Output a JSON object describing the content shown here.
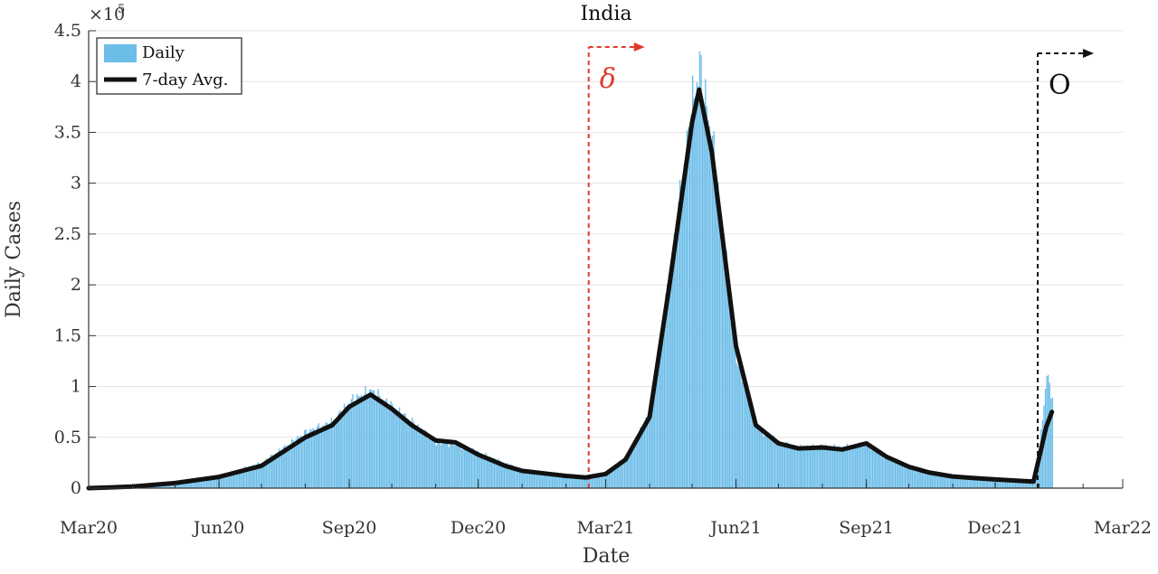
{
  "chart_data": {
    "type": "bar+line",
    "title": "India",
    "xlabel": "Date",
    "ylabel": "Daily Cases",
    "y_exponent_label": "×10",
    "y_exponent_power": "5",
    "ylim": [
      0,
      450000
    ],
    "y_ticks": [
      0,
      50000,
      100000,
      150000,
      200000,
      250000,
      300000,
      350000,
      400000,
      450000
    ],
    "y_tick_labels": [
      "0",
      "0.5",
      "1",
      "1.5",
      "2",
      "2.5",
      "3",
      "3.5",
      "4",
      "4.5"
    ],
    "xlim": [
      "2020-03-01",
      "2022-03-01"
    ],
    "x_ticks": [
      {
        "date": "2020-03-01",
        "label": "Mar20"
      },
      {
        "date": "2020-06-01",
        "label": "Jun20"
      },
      {
        "date": "2020-09-01",
        "label": "Sep20"
      },
      {
        "date": "2020-12-01",
        "label": "Dec20"
      },
      {
        "date": "2021-03-01",
        "label": "Mar21"
      },
      {
        "date": "2021-06-01",
        "label": "Jun21"
      },
      {
        "date": "2021-09-01",
        "label": "Sep21"
      },
      {
        "date": "2021-12-01",
        "label": "Dec21"
      },
      {
        "date": "2022-03-01",
        "label": "Mar22"
      }
    ],
    "grid": "horizontal",
    "legend": {
      "placement": "top-left",
      "entries": [
        {
          "label": "Daily",
          "color": "#6cbde8",
          "kind": "bar"
        },
        {
          "label": "7-day Avg.",
          "color": "#111111",
          "kind": "line"
        }
      ]
    },
    "series": [
      {
        "name": "Daily",
        "kind": "bar",
        "color": "#6cbde8",
        "x": [
          "2020-03-01",
          "2020-04-01",
          "2020-05-01",
          "2020-06-01",
          "2020-07-01",
          "2020-08-01",
          "2020-08-20",
          "2020-09-01",
          "2020-09-16",
          "2020-10-01",
          "2020-10-15",
          "2020-11-01",
          "2020-11-15",
          "2020-12-01",
          "2020-12-20",
          "2021-01-01",
          "2021-01-20",
          "2021-02-01",
          "2021-02-15",
          "2021-03-01",
          "2021-03-15",
          "2021-04-01",
          "2021-04-15",
          "2021-05-01",
          "2021-05-06",
          "2021-05-15",
          "2021-06-01",
          "2021-06-15",
          "2021-07-01",
          "2021-07-15",
          "2021-08-01",
          "2021-08-15",
          "2021-09-01",
          "2021-09-15",
          "2021-10-01",
          "2021-10-15",
          "2021-11-01",
          "2021-11-15",
          "2021-12-01",
          "2021-12-15",
          "2021-12-28",
          "2022-01-01",
          "2022-01-06",
          "2022-01-10"
        ],
        "values": [
          0,
          1500,
          6000,
          12000,
          25000,
          55000,
          65000,
          85000,
          96000,
          80000,
          65000,
          45000,
          43000,
          35000,
          24000,
          18000,
          15000,
          12000,
          11000,
          15000,
          30000,
          75000,
          210000,
          380000,
          414000,
          340000,
          130000,
          60000,
          45000,
          40000,
          41000,
          40000,
          43000,
          30000,
          22000,
          16000,
          12000,
          10000,
          9000,
          8000,
          7000,
          40000,
          112000,
          90000
        ]
      },
      {
        "name": "7-day Avg.",
        "kind": "line",
        "color": "#111111",
        "x": [
          "2020-03-01",
          "2020-04-01",
          "2020-05-01",
          "2020-06-01",
          "2020-07-01",
          "2020-08-01",
          "2020-08-20",
          "2020-09-01",
          "2020-09-16",
          "2020-10-01",
          "2020-10-15",
          "2020-11-01",
          "2020-11-15",
          "2020-12-01",
          "2020-12-20",
          "2021-01-01",
          "2021-01-20",
          "2021-02-01",
          "2021-02-15",
          "2021-03-01",
          "2021-03-15",
          "2021-04-01",
          "2021-04-15",
          "2021-05-01",
          "2021-05-06",
          "2021-05-15",
          "2021-06-01",
          "2021-06-15",
          "2021-07-01",
          "2021-07-15",
          "2021-08-01",
          "2021-08-15",
          "2021-09-01",
          "2021-09-15",
          "2021-10-01",
          "2021-10-15",
          "2021-11-01",
          "2021-11-15",
          "2021-12-01",
          "2021-12-15",
          "2021-12-28",
          "2022-01-01",
          "2022-01-06",
          "2022-01-10"
        ],
        "values": [
          0,
          1500,
          5000,
          11000,
          22000,
          50000,
          62000,
          80000,
          92000,
          78000,
          62000,
          47000,
          45000,
          33000,
          22000,
          17000,
          14000,
          12000,
          10500,
          14000,
          28000,
          70000,
          200000,
          360000,
          392000,
          330000,
          140000,
          62000,
          44000,
          39000,
          40000,
          38000,
          44000,
          31000,
          21000,
          15500,
          11500,
          10000,
          8500,
          7500,
          6500,
          30000,
          60000,
          75000
        ]
      }
    ],
    "annotations": [
      {
        "label": "δ",
        "date": "2021-02-17",
        "color": "#e0392b",
        "style": "dashed vertical line with right arrow"
      },
      {
        "label": "O",
        "date": "2021-12-31",
        "color": "#111111",
        "style": "dashed vertical line with right arrow"
      }
    ]
  }
}
